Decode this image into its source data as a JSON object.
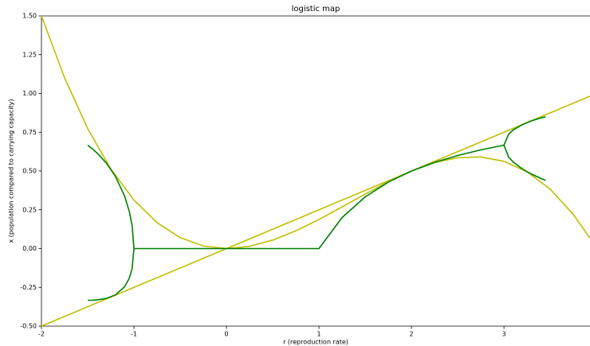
{
  "chart_data": {
    "type": "line",
    "title": "logistic map",
    "x_label": "r (reproduction rate)",
    "y_label": "x (population compared to carrying capacity)",
    "xlim": [
      -2,
      3.93
    ],
    "ylim": [
      -0.5,
      1.5
    ],
    "xticks": [
      -2,
      -1,
      0,
      1,
      2,
      3
    ],
    "yticks": [
      {
        "value": -0.5,
        "label": "-0.50"
      },
      {
        "value": -0.25,
        "label": "-0.25"
      },
      {
        "value": 0,
        "label": "0.00"
      },
      {
        "value": 0.25,
        "label": "0.25"
      },
      {
        "value": 0.5,
        "label": "0.50"
      },
      {
        "value": 0.75,
        "label": "0.75"
      },
      {
        "value": 1,
        "label": "1.00"
      },
      {
        "value": 1.25,
        "label": "1.25"
      },
      {
        "value": 1.5,
        "label": "1.50"
      }
    ],
    "series": [
      {
        "color": "#bfbf00",
        "x": [
          -2,
          3.93
        ],
        "values": [
          -0.5,
          0.9825
        ]
      },
      {
        "color": "#bfbf00",
        "x": [
          -2,
          -1.75,
          -1.5,
          -1.25,
          -1,
          -0.75,
          -0.5,
          -0.25,
          0,
          0.25,
          0.5,
          0.75,
          1,
          1.25,
          1.5,
          1.75,
          2,
          2.25,
          2.5,
          2.75,
          3,
          3.25,
          3.5,
          3.75,
          3.93
        ],
        "values": [
          1.5,
          1.1006,
          0.7734,
          0.5127,
          0.3125,
          0.167,
          0.0703,
          0.0166,
          0,
          0.0146,
          0.0547,
          0.1143,
          0.1875,
          0.2686,
          0.3516,
          0.4307,
          0.5,
          0.5537,
          0.5859,
          0.5908,
          0.5625,
          0.4951,
          0.3828,
          0.2197,
          0.0669
        ]
      },
      {
        "color": "#007f00",
        "x": [
          -1,
          1,
          1.25,
          1.5,
          1.75,
          2,
          2.25,
          2.5,
          2.75,
          3
        ],
        "values": [
          0,
          0,
          0.2,
          0.3333,
          0.4286,
          0.5,
          0.5556,
          0.6,
          0.6364,
          0.6667
        ]
      },
      {
        "color": "#007f00",
        "x": [
          -1.5,
          -1.45,
          -1.4,
          -1.3,
          -1.2,
          -1.1,
          -1.05,
          -1.02,
          -1,
          -1.02,
          -1.05,
          -1.1,
          -1.2,
          -1.3,
          -1.4,
          -1.45,
          -1.5
        ],
        "values": [
          0.6667,
          0.6431,
          0.6166,
          0.5522,
          0.4652,
          0.3365,
          0.2381,
          0.1488,
          0,
          -0.1292,
          -0.1905,
          -0.2456,
          -0.2985,
          -0.3215,
          -0.3309,
          -0.3328,
          -0.3333
        ]
      },
      {
        "color": "#007f00",
        "x": [
          3.45,
          3.4,
          3.3,
          3.2,
          3.1,
          3.05,
          3,
          3.05,
          3.1,
          3.2,
          3.3,
          3.4,
          3.45
        ],
        "values": [
          0.85,
          0.8421,
          0.8236,
          0.7995,
          0.7646,
          0.7377,
          0.6667,
          0.5902,
          0.558,
          0.513,
          0.4794,
          0.452,
          0.4398
        ]
      }
    ]
  }
}
